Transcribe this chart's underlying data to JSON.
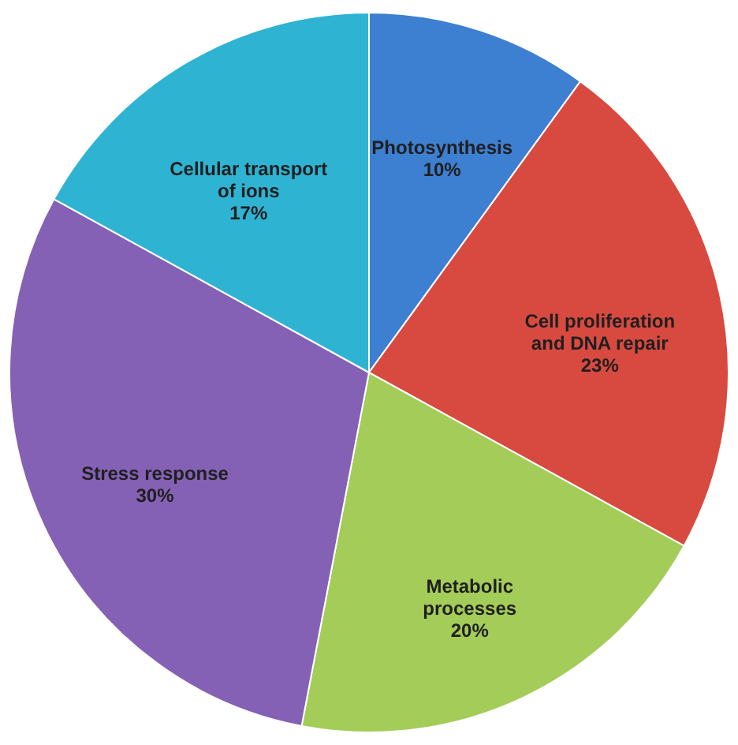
{
  "chart_data": {
    "type": "pie",
    "categories": [
      "Photosynthesis",
      "Cell proliferation and DNA repair",
      "Metabolic processes",
      "Stress response",
      "Cellular transport of ions"
    ],
    "values": [
      10,
      23,
      20,
      30,
      17
    ],
    "colors": [
      "#3d7fd0",
      "#d84a40",
      "#a3cc58",
      "#8561b5",
      "#2fb3d3"
    ],
    "value_labels": [
      "10%",
      "23%",
      "20%",
      "30%",
      "17%"
    ],
    "legend": false
  }
}
